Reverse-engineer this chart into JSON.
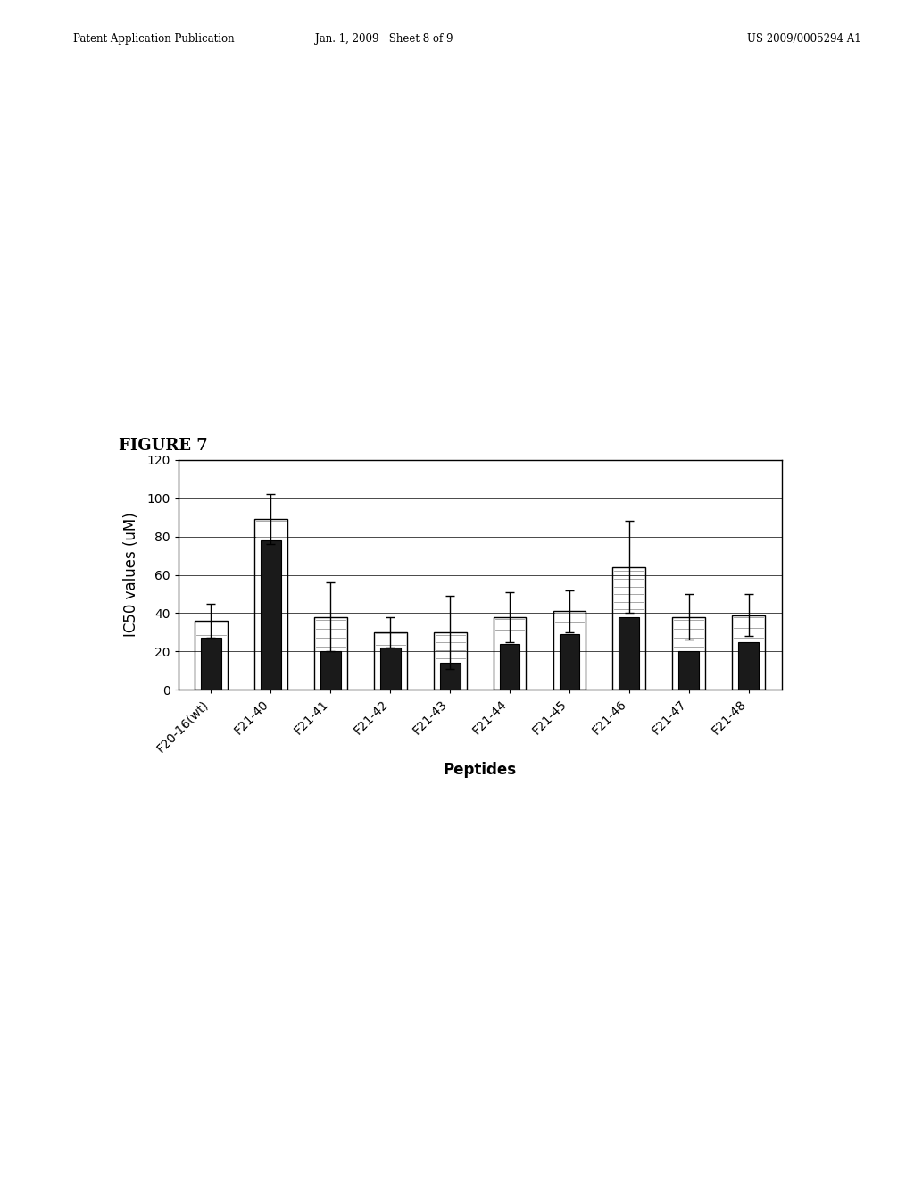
{
  "categories": [
    "F20-16(wt)",
    "F21-40",
    "F21-41",
    "F21-42",
    "F21-43",
    "F21-44",
    "F21-45",
    "F21-46",
    "F21-47",
    "F21-48"
  ],
  "bar1_values": [
    27,
    78,
    20,
    22,
    14,
    24,
    29,
    38,
    20,
    25
  ],
  "bar2_values": [
    36,
    89,
    38,
    30,
    30,
    38,
    41,
    64,
    38,
    39
  ],
  "bar1_color": "#1a1a1a",
  "bar2_color": "#ffffff",
  "error_values": [
    9,
    13,
    18,
    8,
    19,
    13,
    11,
    24,
    12,
    11
  ],
  "xlabel": "Peptides",
  "ylabel": "IC50 values (uM)",
  "ylim": [
    0,
    120
  ],
  "yticks": [
    0,
    20,
    40,
    60,
    80,
    100,
    120
  ],
  "figure_label": "FIGURE 7",
  "label_fontsize": 12,
  "tick_fontsize": 10,
  "bar_width": 0.55,
  "background_color": "#ffffff",
  "header_left": "Patent Application Publication",
  "header_mid": "Jan. 1, 2009   Sheet 8 of 9",
  "header_right": "US 2009/0005294 A1"
}
